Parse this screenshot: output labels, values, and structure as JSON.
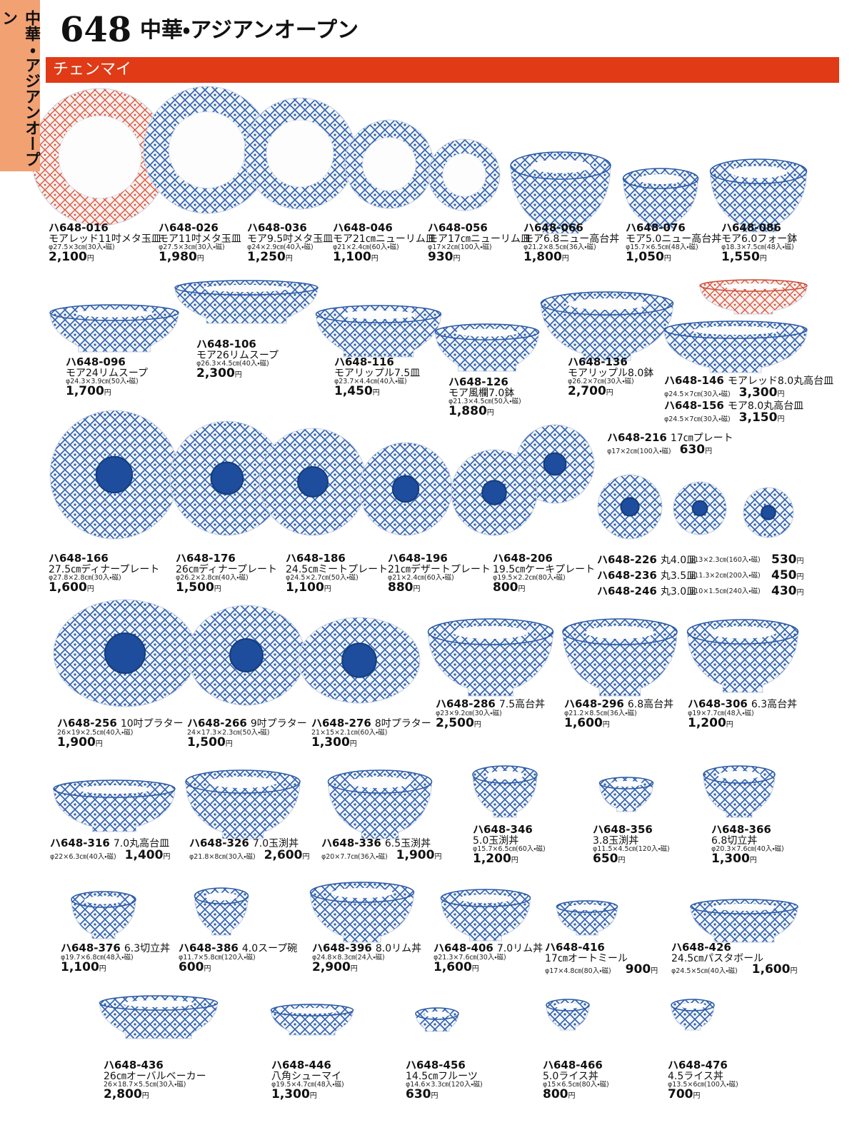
{
  "header": {
    "page_number": "648",
    "title": "中華・アジアンオープン",
    "side_tab": "中華・アジアンオープン",
    "section": "チェンマイ"
  },
  "currency": "円",
  "products": [
    {
      "code": "ハ648-016",
      "name": "モアレッド11吋メタ玉皿",
      "spec": "φ27.5×3㎝(30入・磁)",
      "price": "2,100"
    },
    {
      "code": "ハ648-026",
      "name": "モア11吋メタ玉皿",
      "spec": "φ27.5×3㎝(30入・磁)",
      "price": "1,980"
    },
    {
      "code": "ハ648-036",
      "name": "モア9.5吋メタ玉皿",
      "spec": "φ24×2.9㎝(40入・磁)",
      "price": "1,250"
    },
    {
      "code": "ハ648-046",
      "name": "モア21㎝ニューリム皿",
      "spec": "φ21×2.4㎝(60入・磁)",
      "price": "1,100"
    },
    {
      "code": "ハ648-056",
      "name": "モア17㎝ニューリム皿",
      "spec": "φ17×2㎝(100入・磁)",
      "price": "930"
    },
    {
      "code": "ハ648-066",
      "name": "モア6.8ニュー高台丼",
      "spec": "φ21.2×8.5㎝(36入・磁)",
      "price": "1,800"
    },
    {
      "code": "ハ648-076",
      "name": "モア5.0ニュー高台丼",
      "spec": "φ15.7×6.5㎝(48入・磁)",
      "price": "1,050"
    },
    {
      "code": "ハ648-086",
      "name": "モア6.0フォー鉢",
      "spec": "φ18.3×7.5㎝(48入・磁)",
      "price": "1,550"
    },
    {
      "code": "ハ648-096",
      "name": "モア24リムスープ",
      "spec": "φ24.3×3.9㎝(50入・磁)",
      "price": "1,700"
    },
    {
      "code": "ハ648-106",
      "name": "モア26リムスープ",
      "spec": "φ26.3×4.5㎝(40入・磁)",
      "price": "2,300"
    },
    {
      "code": "ハ648-116",
      "name": "モアリップル7.5皿",
      "spec": "φ23.7×4.4㎝(40入・磁)",
      "price": "1,450"
    },
    {
      "code": "ハ648-126",
      "name": "モア風欄7.0鉢",
      "spec": "φ21.3×4.5㎝(50入・磁)",
      "price": "1,880"
    },
    {
      "code": "ハ648-136",
      "name": "モアリップル8.0鉢",
      "spec": "φ26.2×7㎝(30入・磁)",
      "price": "2,700"
    },
    {
      "code": "ハ648-146",
      "name": "モアレッド8.0丸高台皿",
      "spec": "φ24.5×7㎝(30入・磁)",
      "price": "3,300"
    },
    {
      "code": "ハ648-156",
      "name": "モア8.0丸高台皿",
      "spec": "φ24.5×7㎝(30入・磁)",
      "price": "3,150"
    },
    {
      "code": "ハ648-216",
      "name": "17㎝プレート",
      "spec": "φ17×2㎝(100入・磁)",
      "price": "630"
    },
    {
      "code": "ハ648-166",
      "name": "27.5㎝ディナープレート",
      "spec": "φ27.8×2.8㎝(30入・磁)",
      "price": "1,600"
    },
    {
      "code": "ハ648-176",
      "name": "26㎝ディナープレート",
      "spec": "φ26.2×2.8㎝(40入・磁)",
      "price": "1,500"
    },
    {
      "code": "ハ648-186",
      "name": "24.5㎝ミートプレート",
      "spec": "φ24.5×2.7㎝(50入・磁)",
      "price": "1,100"
    },
    {
      "code": "ハ648-196",
      "name": "21㎝デザートプレート",
      "spec": "φ21×2.4㎝(60入・磁)",
      "price": "880"
    },
    {
      "code": "ハ648-206",
      "name": "19.5㎝ケーキプレート",
      "spec": "φ19.5×2.2㎝(80入・磁)",
      "price": "800"
    },
    {
      "code": "ハ648-226",
      "name": "丸4.0皿",
      "spec": "φ13×2.3㎝(160入・磁)",
      "price": "530"
    },
    {
      "code": "ハ648-236",
      "name": "丸3.5皿",
      "spec": "φ11.3×2㎝(200入・磁)",
      "price": "450"
    },
    {
      "code": "ハ648-246",
      "name": "丸3.0皿",
      "spec": "φ10×1.5㎝(240入・磁)",
      "price": "430"
    },
    {
      "code": "ハ648-256",
      "name": "10吋プラター",
      "spec": "26×19×2.5㎝(40入・磁)",
      "price": "1,900"
    },
    {
      "code": "ハ648-266",
      "name": "9吋プラター",
      "spec": "24×17.3×2.3㎝(50入・磁)",
      "price": "1,500"
    },
    {
      "code": "ハ648-276",
      "name": "8吋プラター",
      "spec": "21×15×2.1㎝(60入・磁)",
      "price": "1,300"
    },
    {
      "code": "ハ648-286",
      "name": "7.5高台丼",
      "spec": "φ23×9.2㎝(30入・磁)",
      "price": "2,500"
    },
    {
      "code": "ハ648-296",
      "name": "6.8高台丼",
      "spec": "φ21.2×8.5㎝(36入・磁)",
      "price": "1,600"
    },
    {
      "code": "ハ648-306",
      "name": "6.3高台丼",
      "spec": "φ19×7.7㎝(48入・磁)",
      "price": "1,200"
    },
    {
      "code": "ハ648-316",
      "name": "7.0丸高台皿",
      "spec": "φ22×6.3㎝(40入・磁)",
      "price": "1,400"
    },
    {
      "code": "ハ648-326",
      "name": "7.0玉渕丼",
      "spec": "φ21.8×8㎝(30入・磁)",
      "price": "2,600"
    },
    {
      "code": "ハ648-336",
      "name": "6.5玉渕丼",
      "spec": "φ20×7.7㎝(36入・磁)",
      "price": "1,900"
    },
    {
      "code": "ハ648-346",
      "name": "5.0玉渕丼",
      "spec": "φ15.7×6.5㎝(60入・磁)",
      "price": "1,200"
    },
    {
      "code": "ハ648-356",
      "name": "3.8玉渕丼",
      "spec": "φ11.5×4.5㎝(120入・磁)",
      "price": "650"
    },
    {
      "code": "ハ648-366",
      "name": "6.8切立丼",
      "spec": "φ20.3×7.6㎝(40入・磁)",
      "price": "1,300"
    },
    {
      "code": "ハ648-376",
      "name": "6.3切立丼",
      "spec": "φ19.7×6.8㎝(48入・磁)",
      "price": "1,100"
    },
    {
      "code": "ハ648-386",
      "name": "4.0スープ碗",
      "spec": "φ11.7×5.8㎝(120入・磁)",
      "price": "600"
    },
    {
      "code": "ハ648-396",
      "name": "8.0リム丼",
      "spec": "φ24.8×8.3㎝(24入・磁)",
      "price": "2,900"
    },
    {
      "code": "ハ648-406",
      "name": "7.0リム丼",
      "spec": "φ21.3×7.6㎝(30入・磁)",
      "price": "1,600"
    },
    {
      "code": "ハ648-416",
      "name": "17㎝オートミール",
      "spec": "φ17×4.8㎝(80入・磁)",
      "price": "900"
    },
    {
      "code": "ハ648-426",
      "name": "24.5㎝パスタボール",
      "spec": "φ24.5×5㎝(40入・磁)",
      "price": "1,600"
    },
    {
      "code": "ハ648-436",
      "name": "26㎝オーバルベーカー",
      "spec": "26×18.7×5.5㎝(30入・磁)",
      "price": "2,800"
    },
    {
      "code": "ハ648-446",
      "name": "八角シューマイ",
      "spec": "φ19.5×4.7㎝(48入・磁)",
      "price": "1,300"
    },
    {
      "code": "ハ648-456",
      "name": "14.5㎝フルーツ",
      "spec": "φ14.6×3.3㎝(120入・磁)",
      "price": "630"
    },
    {
      "code": "ハ648-466",
      "name": "5.0ライス丼",
      "spec": "φ15×6.5㎝(80入・磁)",
      "price": "800"
    },
    {
      "code": "ハ648-476",
      "name": "4.5ライス丼",
      "spec": "φ13.5×6㎝(100入・磁)",
      "price": "700"
    }
  ]
}
